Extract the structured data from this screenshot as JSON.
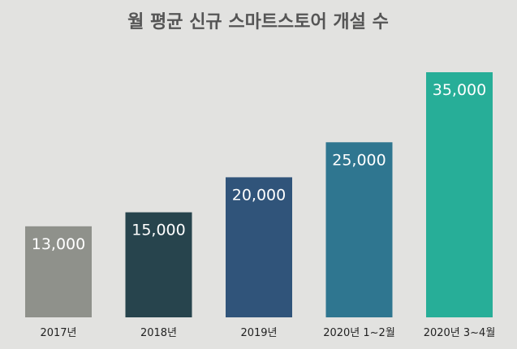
{
  "chart_data": {
    "type": "bar",
    "title": "월 평균 신규 스마트스토어 개설 수",
    "categories": [
      "2017년",
      "2018년",
      "2019년",
      "2020년 1~2월",
      "2020년 3~4월"
    ],
    "values": [
      13000,
      15000,
      20000,
      25000,
      35000
    ],
    "value_labels": [
      "13,000",
      "15,000",
      "20,000",
      "25,000",
      "35,000"
    ],
    "colors": [
      "#8f918b",
      "#27444d",
      "#30547a",
      "#2f7690",
      "#27ae98"
    ],
    "ylim": [
      0,
      35000
    ],
    "grid": false,
    "legend": "none"
  }
}
